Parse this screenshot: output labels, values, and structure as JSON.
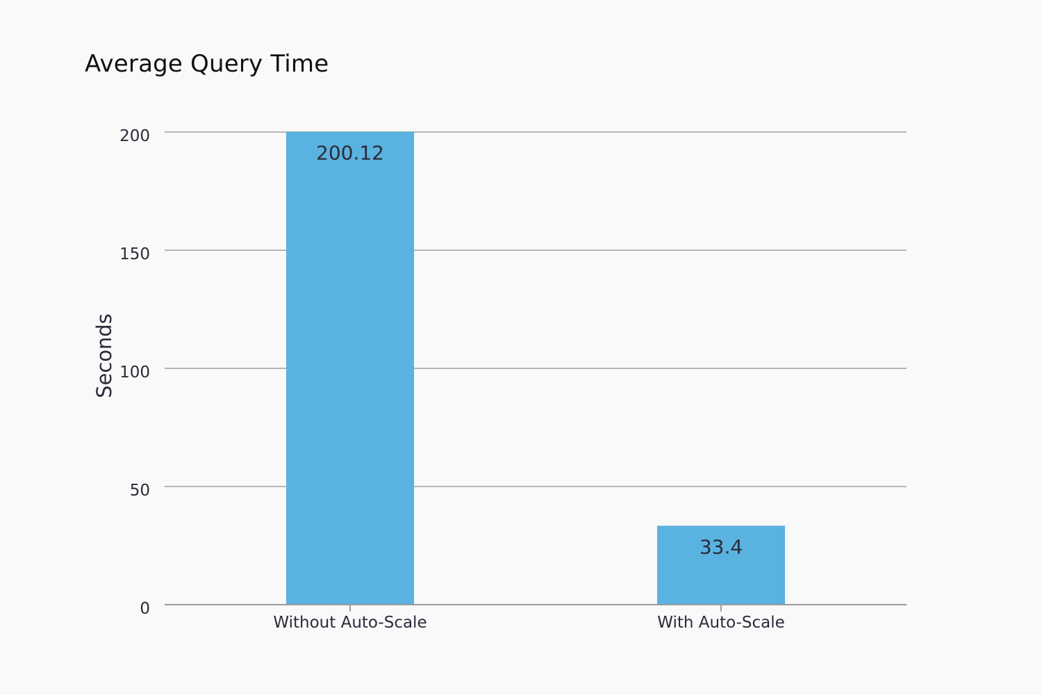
{
  "chart_data": {
    "type": "bar",
    "title": "Average Query Time",
    "xlabel": "",
    "ylabel": "Seconds",
    "categories": [
      "Without Auto-Scale",
      "With Auto-Scale"
    ],
    "values": [
      200.12,
      33.4
    ],
    "data_labels": [
      "200.12",
      "33.4"
    ],
    "ylim": [
      0,
      200
    ],
    "yticks": [
      0,
      50,
      100,
      150,
      200
    ],
    "ytick_labels": [
      "0",
      "50",
      "100",
      "150",
      "200"
    ],
    "grid": true,
    "legend": "none",
    "colors": {
      "bar": "#5ab2e0",
      "grid": "#b5b5b5",
      "axis": "#9a9a9a",
      "text": "#2b2b3a",
      "background": "#f9f9f9"
    }
  }
}
